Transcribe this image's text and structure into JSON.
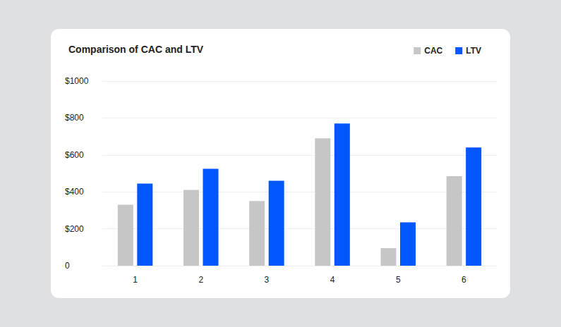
{
  "chart_data": {
    "type": "bar",
    "title": "Comparison of CAC and LTV",
    "categories": [
      "1",
      "2",
      "3",
      "4",
      "5",
      "6"
    ],
    "series": [
      {
        "name": "CAC",
        "color": "#c6c6c6",
        "values": [
          330,
          410,
          350,
          690,
          95,
          485
        ]
      },
      {
        "name": "LTV",
        "color": "#0057ff",
        "values": [
          445,
          525,
          460,
          770,
          235,
          640
        ]
      }
    ],
    "ylim": [
      0,
      1000
    ],
    "yticks": [
      0,
      {
        "value": 200,
        "label": "$200"
      },
      {
        "value": 400,
        "label": "$400"
      },
      {
        "value": 600,
        "label": "$600"
      },
      {
        "value": 800,
        "label": "$800"
      },
      {
        "value": 1000,
        "label": "$1000"
      }
    ],
    "grid": true,
    "legend": "top-right"
  }
}
